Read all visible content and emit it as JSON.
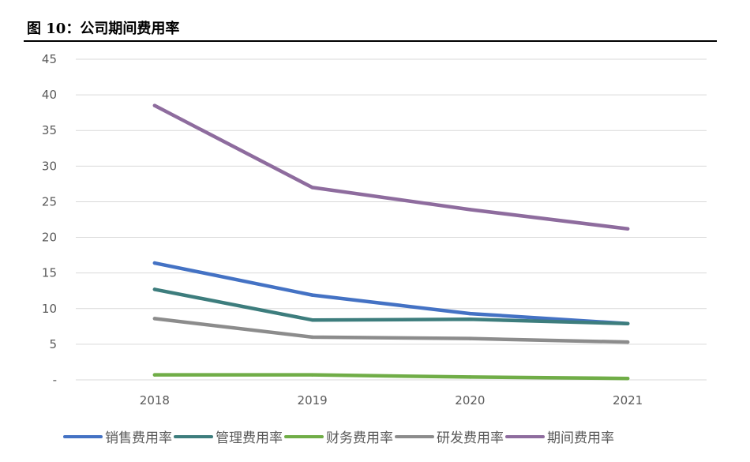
{
  "figure": {
    "title": "图 10：公司期间费用率"
  },
  "chart_data": {
    "type": "line",
    "title": "",
    "xlabel": "",
    "ylabel": "",
    "categories": [
      "2018",
      "2019",
      "2020",
      "2021"
    ],
    "ylim": [
      0,
      45
    ],
    "yticks": [
      0,
      5,
      10,
      15,
      20,
      25,
      30,
      35,
      40,
      45
    ],
    "ytick_labels": [
      "-",
      "5",
      "10",
      "15",
      "20",
      "25",
      "30",
      "35",
      "40",
      "45"
    ],
    "grid": true,
    "legend_position": "bottom",
    "series": [
      {
        "name": "销售费用率",
        "color": "#4472C4",
        "values": [
          16.4,
          11.9,
          9.3,
          7.9
        ]
      },
      {
        "name": "管理费用率",
        "color": "#3D7D7D",
        "values": [
          12.7,
          8.4,
          8.5,
          7.9
        ]
      },
      {
        "name": "财务费用率",
        "color": "#70AD47",
        "values": [
          0.7,
          0.7,
          0.4,
          0.2
        ]
      },
      {
        "name": "研发费用率",
        "color": "#8C8C8C",
        "values": [
          8.6,
          6.0,
          5.8,
          5.3
        ]
      },
      {
        "name": "期间费用率",
        "color": "#8E6C9E",
        "values": [
          38.5,
          27.0,
          23.9,
          21.2
        ]
      }
    ]
  }
}
